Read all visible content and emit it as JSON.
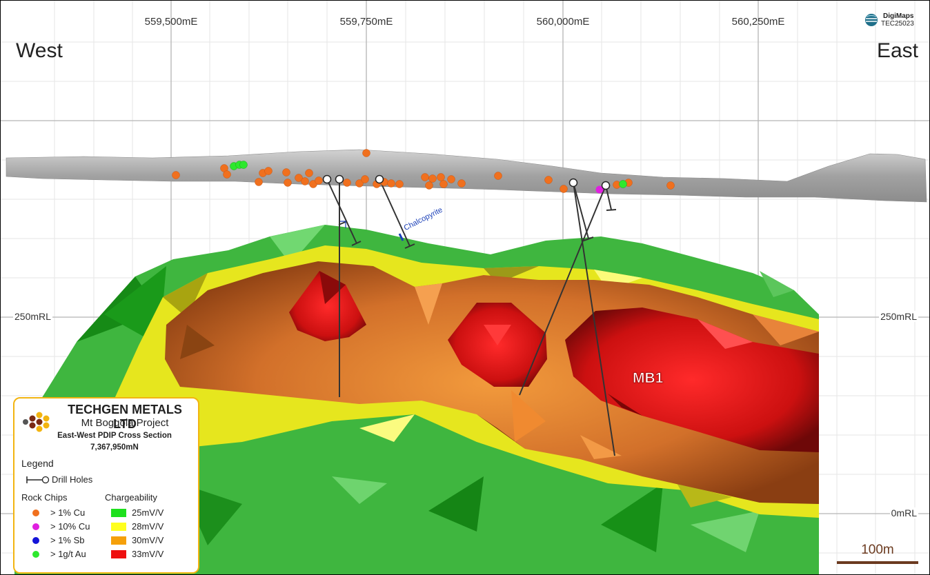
{
  "map": {
    "direction_left": "West",
    "direction_right": "East",
    "eastings": [
      "559,500mE",
      "559,750mE",
      "560,000mE",
      "560,250mE"
    ],
    "rl_labels": {
      "level_250_left": "250mRL",
      "level_250_right": "250mRL",
      "level_0_right": "0mRL"
    },
    "body_label": "MB1",
    "annotation": "Chalcopyrite",
    "brand": {
      "line1": "DigiMaps",
      "line2": "TEC25023"
    },
    "scale_bar": "100m"
  },
  "legend": {
    "company": "TECHGEN METALS LTD",
    "project": "Mt Boggola Project",
    "section_title": "East-West PDIP Cross Section",
    "northing": "7,367,950mN",
    "title": "Legend",
    "drill_holes_label": "Drill Holes",
    "rock_chips_title": "Rock Chips",
    "chargeability_title": "Chargeability",
    "rock_chips": [
      {
        "label": "> 1% Cu",
        "color": "#f0701e"
      },
      {
        "label": "> 10% Cu",
        "color": "#e020e0"
      },
      {
        "label": "> 1% Sb",
        "color": "#1414d8"
      },
      {
        "label": "> 1g/t Au",
        "color": "#2ee82e"
      }
    ],
    "chargeability": [
      {
        "label": "25mV/V",
        "color": "#1ee01e"
      },
      {
        "label": "28mV/V",
        "color": "#ffff1e"
      },
      {
        "label": "30mV/V",
        "color": "#f5a00a"
      },
      {
        "label": "33mV/V",
        "color": "#ee1010"
      }
    ]
  },
  "colors": {
    "terrain": "#a8a8a8",
    "outer_shell": "#36b036",
    "shell_28": "#e8e820",
    "shell_30": "#c86a22",
    "shell_33": "#d81818",
    "drill_trace": "#333333"
  }
}
